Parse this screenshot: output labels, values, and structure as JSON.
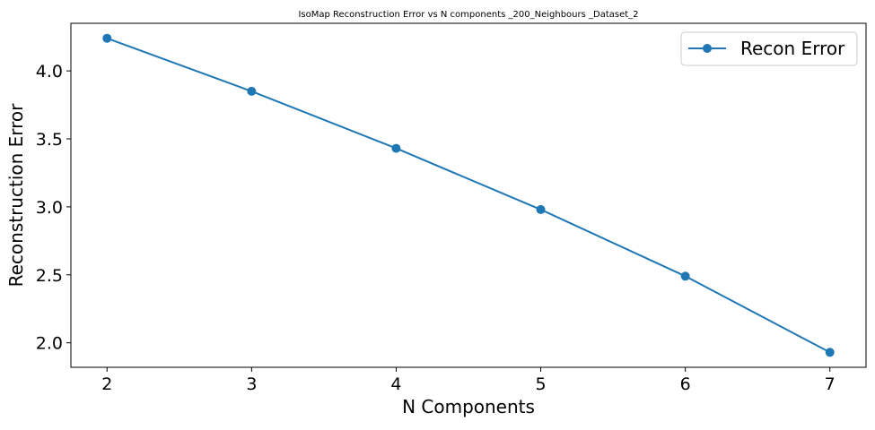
{
  "chart_data": {
    "type": "line",
    "title": "IsoMap Reconstruction Error vs N components _200_Neighbours _Dataset_2",
    "xlabel": "N Components",
    "ylabel": "Reconstruction Error",
    "x": [
      2,
      3,
      4,
      5,
      6,
      7
    ],
    "series": [
      {
        "name": "Recon Error",
        "values": [
          4.24,
          3.85,
          3.43,
          2.98,
          2.49,
          1.93
        ],
        "color": "#1f77b4",
        "marker": "circle"
      }
    ],
    "xticks": [
      "2",
      "3",
      "4",
      "5",
      "6",
      "7"
    ],
    "yticks": [
      "2.0",
      "2.5",
      "3.0",
      "3.5",
      "4.0"
    ],
    "xlim": [
      1.75,
      7.25
    ],
    "ylim": [
      1.82,
      4.35
    ],
    "grid": false,
    "legend_position": "top-right"
  }
}
